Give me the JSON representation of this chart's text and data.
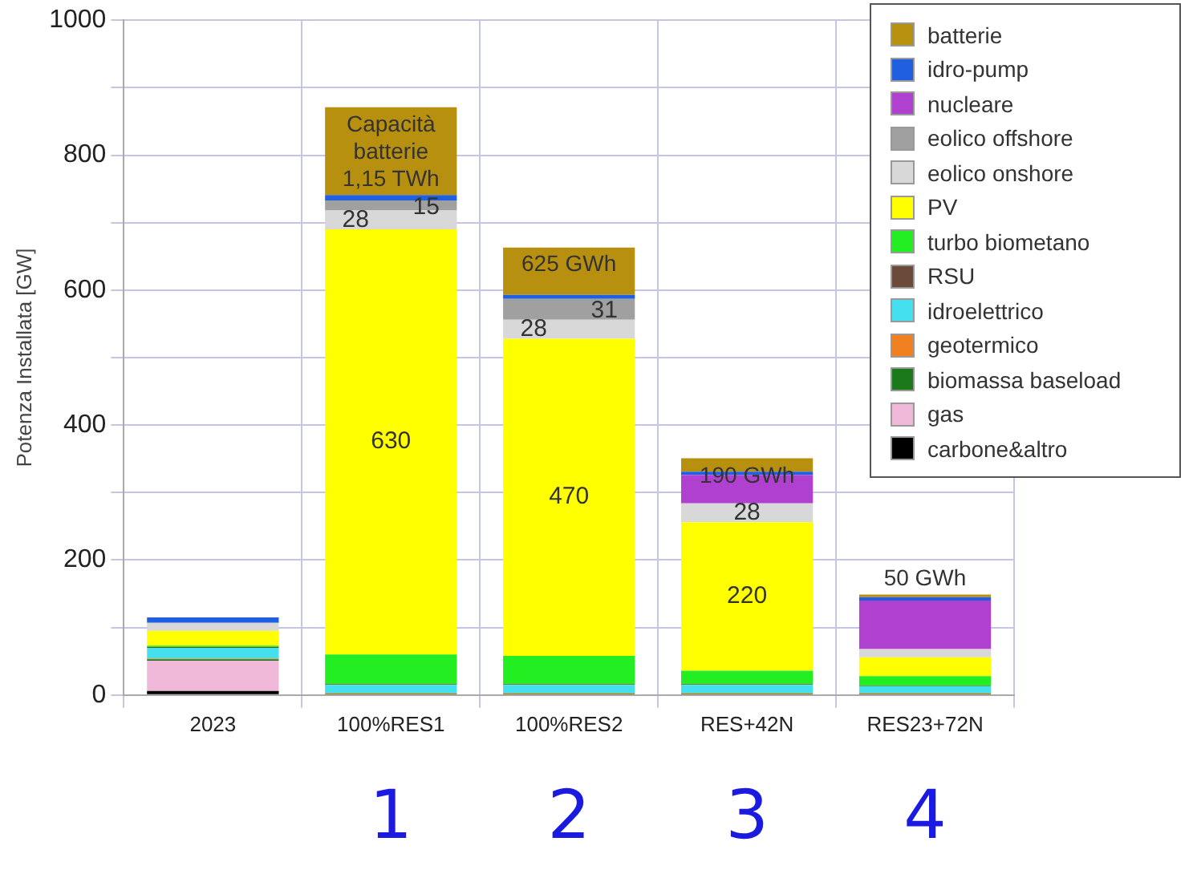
{
  "chart_data": {
    "type": "bar",
    "stacked": true,
    "ylabel": "Potenza Installata [GW]",
    "categories": [
      "2023",
      "100%RES1",
      "100%RES2",
      "RES+42N",
      "RES23+72N"
    ],
    "ylim": [
      0,
      1000
    ],
    "yticks": [
      0,
      {
        "value": 100,
        "label": null
      },
      200,
      {
        "value": 300,
        "label": null
      },
      400,
      {
        "value": 500,
        "label": null
      },
      600,
      {
        "value": 700,
        "label": null
      },
      800,
      {
        "value": 900,
        "label": null
      },
      1000
    ],
    "grid": true,
    "legend": "top right",
    "series": [
      {
        "name": "carbone&altro",
        "color": "#000000",
        "values": [
          6,
          0,
          0,
          0,
          0
        ]
      },
      {
        "name": "gas",
        "color": "#f0b8d8",
        "values": [
          45,
          0,
          0,
          0,
          0
        ]
      },
      {
        "name": "biomassa baseload",
        "color": "#1a7a1a",
        "values": [
          2,
          2,
          2,
          2,
          2
        ]
      },
      {
        "name": "geotermico",
        "color": "#f08020",
        "values": [
          1,
          1,
          1,
          1,
          1
        ]
      },
      {
        "name": "idroelettrico",
        "color": "#44e0f0",
        "values": [
          16,
          12,
          12,
          12,
          10
        ]
      },
      {
        "name": "RSU",
        "color": "#6b4a3a",
        "values": [
          1,
          1,
          1,
          1,
          1
        ]
      },
      {
        "name": "turbo biometano",
        "color": "#22ee22",
        "values": [
          2,
          44,
          42,
          20,
          14
        ]
      },
      {
        "name": "PV",
        "color": "#ffff00",
        "values": [
          22,
          630,
          470,
          220,
          28
        ],
        "value_labels": [
          null,
          "630",
          "470",
          "220",
          null
        ]
      },
      {
        "name": "eolico onshore",
        "color": "#d8d8d8",
        "values": [
          12,
          28,
          28,
          28,
          12
        ],
        "value_labels": [
          null,
          "28",
          "28",
          "28",
          null
        ]
      },
      {
        "name": "eolico offshore",
        "color": "#a0a0a0",
        "values": [
          0,
          15,
          31,
          0,
          0
        ],
        "value_labels": [
          null,
          "15",
          "31",
          null,
          null
        ]
      },
      {
        "name": "nucleare",
        "color": "#b040d0",
        "values": [
          0,
          0,
          0,
          42,
          72
        ]
      },
      {
        "name": "idro-pump",
        "color": "#1f5fe0",
        "values": [
          8,
          8,
          6,
          5,
          5
        ]
      },
      {
        "name": "batterie",
        "color": "#b8900f",
        "values": [
          0,
          130,
          70,
          20,
          4
        ]
      }
    ],
    "annotations": [
      {
        "text": "Capacità batterie 1,15 TWh",
        "x": "100%RES1",
        "y": 871
      },
      {
        "text": "625 GWh",
        "x": "100%RES2",
        "y": 663
      },
      {
        "text": "190 GWh",
        "x": "RES+42N",
        "y": 351
      },
      {
        "text": "50 GWh",
        "x": "RES23+72N",
        "y": 149
      },
      "1",
      "2",
      "3",
      "4"
    ]
  }
}
